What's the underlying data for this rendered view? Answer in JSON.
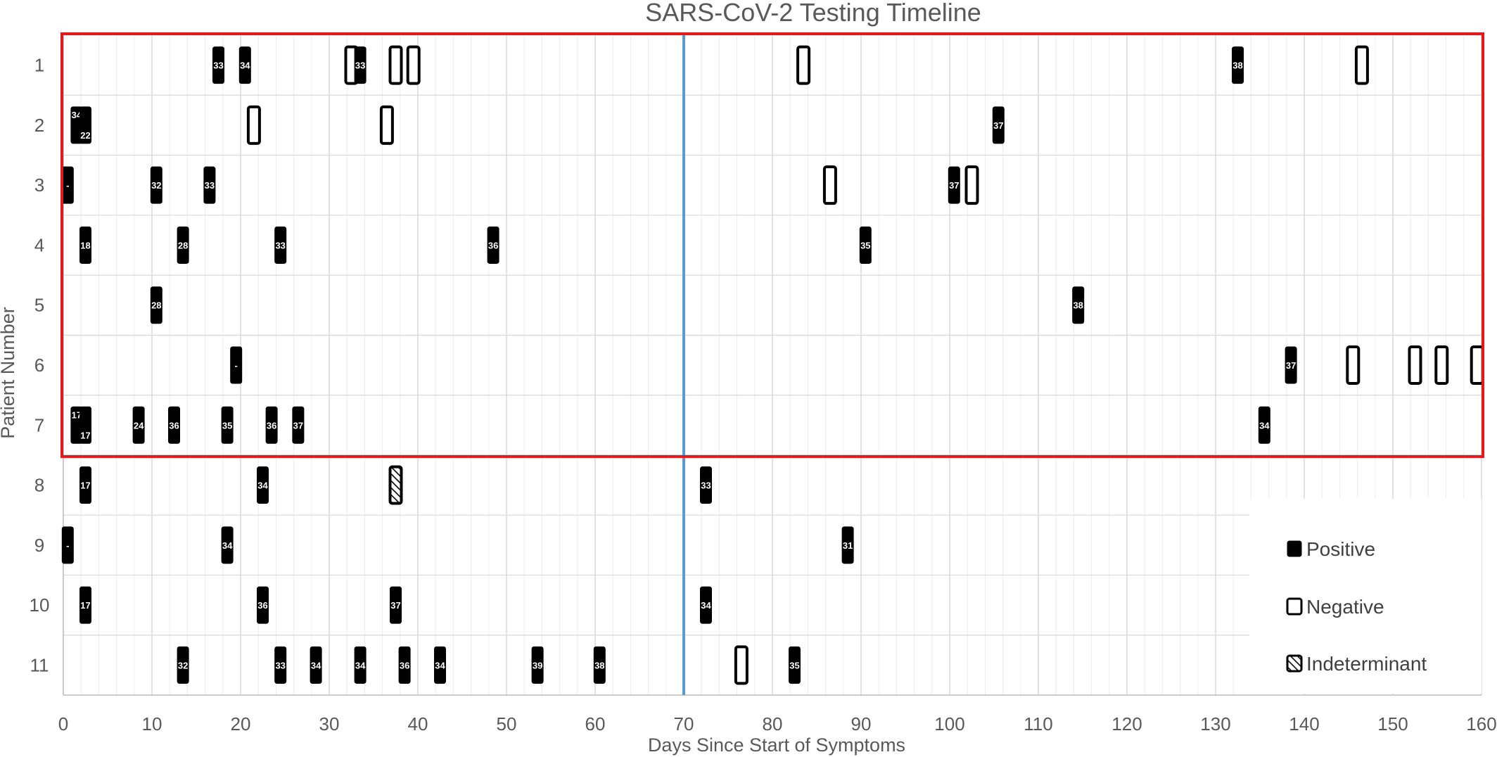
{
  "chart_data": {
    "type": "scatter",
    "title": "SARS-CoV-2 Testing Timeline",
    "xlabel": "Days Since Start of Symptoms",
    "ylabel": "Patient Number",
    "xlim": [
      0,
      160
    ],
    "x_ticks": [
      0,
      10,
      20,
      30,
      40,
      50,
      60,
      70,
      80,
      90,
      100,
      110,
      120,
      130,
      140,
      150,
      160
    ],
    "x_tick_labels": [
      "0",
      "10",
      "20",
      "30",
      "40",
      "50",
      "60",
      "70",
      "80",
      "90",
      "100",
      "110",
      "120",
      "130",
      "140",
      "150",
      "160"
    ],
    "patients": [
      "1",
      "2",
      "3",
      "4",
      "5",
      "6",
      "7",
      "8",
      "9",
      "10",
      "11"
    ],
    "grid": true,
    "reference_line": {
      "x": 70,
      "color": "#5B9BD5"
    },
    "highlight_box": {
      "patients_from": 1,
      "patients_to": 7,
      "color": "#E31A1C"
    },
    "colors": {
      "positive": "#000000",
      "negative": "#ffffff",
      "outline": "#000000",
      "grid": "#d9d9d9",
      "axis_text": "#595959"
    },
    "legend": {
      "position": "bottom-right",
      "entries": [
        {
          "result": "positive",
          "label": "Positive"
        },
        {
          "result": "negative",
          "label": "Negative"
        },
        {
          "result": "indeterminate",
          "label": "Indeterminant"
        }
      ]
    },
    "tests": [
      {
        "patient": 1,
        "day": 17.5,
        "result": "positive",
        "label": "33"
      },
      {
        "patient": 1,
        "day": 20.5,
        "result": "positive",
        "label": "34"
      },
      {
        "patient": 1,
        "day": 32.5,
        "result": "negative",
        "label": ""
      },
      {
        "patient": 1,
        "day": 33.5,
        "result": "positive",
        "label": "33"
      },
      {
        "patient": 1,
        "day": 37.5,
        "result": "negative",
        "label": ""
      },
      {
        "patient": 1,
        "day": 39.5,
        "result": "negative",
        "label": ""
      },
      {
        "patient": 1,
        "day": 83.5,
        "result": "negative",
        "label": ""
      },
      {
        "patient": 1,
        "day": 132.5,
        "result": "positive",
        "label": "38"
      },
      {
        "patient": 1,
        "day": 146.5,
        "result": "negative",
        "label": ""
      },
      {
        "patient": 2,
        "day": 1.5,
        "result": "positive",
        "label": "34",
        "label_position": "upper"
      },
      {
        "patient": 2,
        "day": 2.5,
        "result": "positive",
        "label": "22",
        "label_position": "lower"
      },
      {
        "patient": 2,
        "day": 21.5,
        "result": "negative",
        "label": ""
      },
      {
        "patient": 2,
        "day": 36.5,
        "result": "negative",
        "label": ""
      },
      {
        "patient": 2,
        "day": 105.5,
        "result": "positive",
        "label": "37"
      },
      {
        "patient": 3,
        "day": 0.5,
        "result": "positive",
        "label": "-"
      },
      {
        "patient": 3,
        "day": 10.5,
        "result": "positive",
        "label": "32"
      },
      {
        "patient": 3,
        "day": 16.5,
        "result": "positive",
        "label": "33"
      },
      {
        "patient": 3,
        "day": 86.5,
        "result": "negative",
        "label": ""
      },
      {
        "patient": 3,
        "day": 100.5,
        "result": "positive",
        "label": "37"
      },
      {
        "patient": 3,
        "day": 102.5,
        "result": "negative",
        "label": ""
      },
      {
        "patient": 4,
        "day": 2.5,
        "result": "positive",
        "label": "18"
      },
      {
        "patient": 4,
        "day": 13.5,
        "result": "positive",
        "label": "28"
      },
      {
        "patient": 4,
        "day": 24.5,
        "result": "positive",
        "label": "33"
      },
      {
        "patient": 4,
        "day": 48.5,
        "result": "positive",
        "label": "36"
      },
      {
        "patient": 4,
        "day": 90.5,
        "result": "positive",
        "label": "35"
      },
      {
        "patient": 5,
        "day": 10.5,
        "result": "positive",
        "label": "28"
      },
      {
        "patient": 5,
        "day": 114.5,
        "result": "positive",
        "label": "38"
      },
      {
        "patient": 6,
        "day": 19.5,
        "result": "positive",
        "label": "-"
      },
      {
        "patient": 6,
        "day": 138.5,
        "result": "positive",
        "label": "37"
      },
      {
        "patient": 6,
        "day": 145.5,
        "result": "negative",
        "label": ""
      },
      {
        "patient": 6,
        "day": 152.5,
        "result": "negative",
        "label": ""
      },
      {
        "patient": 6,
        "day": 155.5,
        "result": "negative",
        "label": ""
      },
      {
        "patient": 6,
        "day": 159.5,
        "result": "negative",
        "label": ""
      },
      {
        "patient": 7,
        "day": 1.5,
        "result": "positive",
        "label": "17",
        "label_position": "upper"
      },
      {
        "patient": 7,
        "day": 2.5,
        "result": "positive",
        "label": "17",
        "label_position": "lower"
      },
      {
        "patient": 7,
        "day": 8.5,
        "result": "positive",
        "label": "24"
      },
      {
        "patient": 7,
        "day": 12.5,
        "result": "positive",
        "label": "36"
      },
      {
        "patient": 7,
        "day": 18.5,
        "result": "positive",
        "label": "35"
      },
      {
        "patient": 7,
        "day": 23.5,
        "result": "positive",
        "label": "36"
      },
      {
        "patient": 7,
        "day": 26.5,
        "result": "positive",
        "label": "37"
      },
      {
        "patient": 7,
        "day": 135.5,
        "result": "positive",
        "label": "34"
      },
      {
        "patient": 8,
        "day": 2.5,
        "result": "positive",
        "label": "17"
      },
      {
        "patient": 8,
        "day": 22.5,
        "result": "positive",
        "label": "34"
      },
      {
        "patient": 8,
        "day": 37.5,
        "result": "indeterminate",
        "label": ""
      },
      {
        "patient": 8,
        "day": 72.5,
        "result": "positive",
        "label": "33"
      },
      {
        "patient": 9,
        "day": 0.5,
        "result": "positive",
        "label": "-"
      },
      {
        "patient": 9,
        "day": 18.5,
        "result": "positive",
        "label": "34"
      },
      {
        "patient": 9,
        "day": 88.5,
        "result": "positive",
        "label": "31"
      },
      {
        "patient": 10,
        "day": 2.5,
        "result": "positive",
        "label": "17"
      },
      {
        "patient": 10,
        "day": 22.5,
        "result": "positive",
        "label": "36"
      },
      {
        "patient": 10,
        "day": 37.5,
        "result": "positive",
        "label": "37"
      },
      {
        "patient": 10,
        "day": 72.5,
        "result": "positive",
        "label": "34"
      },
      {
        "patient": 11,
        "day": 13.5,
        "result": "positive",
        "label": "32"
      },
      {
        "patient": 11,
        "day": 24.5,
        "result": "positive",
        "label": "33"
      },
      {
        "patient": 11,
        "day": 28.5,
        "result": "positive",
        "label": "34"
      },
      {
        "patient": 11,
        "day": 33.5,
        "result": "positive",
        "label": "34"
      },
      {
        "patient": 11,
        "day": 38.5,
        "result": "positive",
        "label": "36"
      },
      {
        "patient": 11,
        "day": 42.5,
        "result": "positive",
        "label": "34"
      },
      {
        "patient": 11,
        "day": 53.5,
        "result": "positive",
        "label": "39"
      },
      {
        "patient": 11,
        "day": 60.5,
        "result": "positive",
        "label": "38"
      },
      {
        "patient": 11,
        "day": 76.5,
        "result": "negative",
        "label": ""
      },
      {
        "patient": 11,
        "day": 82.5,
        "result": "positive",
        "label": "35"
      }
    ]
  }
}
